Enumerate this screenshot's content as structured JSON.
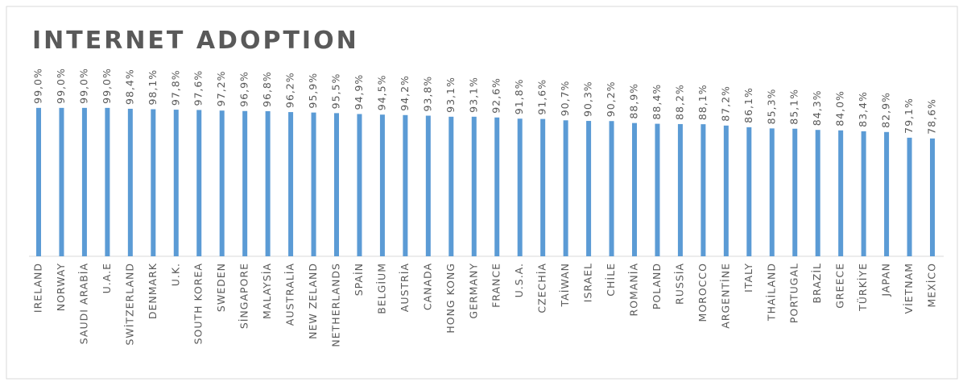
{
  "chart_data": {
    "type": "bar",
    "title": "INTERNET ADOPTION",
    "categories": [
      "IRELAND",
      "NORWAY",
      "SAUDI ARABİA",
      "U.A.E",
      "SWİTZERLAND",
      "DENMARK",
      "U.K.",
      "SOUTH KOREA",
      "SWEDEN",
      "SİNGAPORE",
      "MALAYSİA",
      "AUSTRALİA",
      "NEW ZELAND",
      "NETHERLANDS",
      "SPAİN",
      "BELGİUM",
      "AUSTRİA",
      "CANADA",
      "HONG KONG",
      "GERMANY",
      "FRANCE",
      "U.S.A.",
      "CZECHİA",
      "TAİWAN",
      "ISRAEL",
      "CHİLE",
      "ROMANİA",
      "POLAND",
      "RUSSİA",
      "MOROCCO",
      "ARGENTİNE",
      "ITALY",
      "THAİLAND",
      "PORTUGAL",
      "BRAZİL",
      "GREECE",
      "TÜRKİYE",
      "JAPAN",
      "VİETNAM",
      "MEXİCO"
    ],
    "values": [
      99.0,
      99.0,
      99.0,
      99.0,
      98.4,
      98.1,
      97.8,
      97.6,
      97.2,
      96.9,
      96.8,
      96.2,
      95.9,
      95.5,
      94.9,
      94.5,
      94.2,
      93.8,
      93.1,
      93.1,
      92.6,
      91.8,
      91.6,
      90.7,
      90.3,
      90.2,
      88.9,
      88.4,
      88.2,
      88.1,
      87.2,
      86.1,
      85.3,
      85.1,
      84.3,
      84.0,
      83.4,
      82.9,
      79.1,
      78.6
    ],
    "value_labels": [
      "99,0%",
      "99,0%",
      "99,0%",
      "99,0%",
      "98,4%",
      "98,1%",
      "97,8%",
      "97,6%",
      "97,2%",
      "96,9%",
      "96,8%",
      "96,2%",
      "95,9%",
      "95,5%",
      "94,9%",
      "94,5%",
      "94,2%",
      "93,8%",
      "93,1%",
      "93,1%",
      "92,6%",
      "91,8%",
      "91,6%",
      "90,7%",
      "90,3%",
      "90,2%",
      "88,9%",
      "88,4%",
      "88,2%",
      "88,1%",
      "87,2%",
      "86,1%",
      "85,3%",
      "85,1%",
      "84,3%",
      "84,0%",
      "83,4%",
      "82,9%",
      "79,1%",
      "78,6%"
    ],
    "color": "#5b9bd5",
    "ylim": [
      0,
      100
    ]
  }
}
